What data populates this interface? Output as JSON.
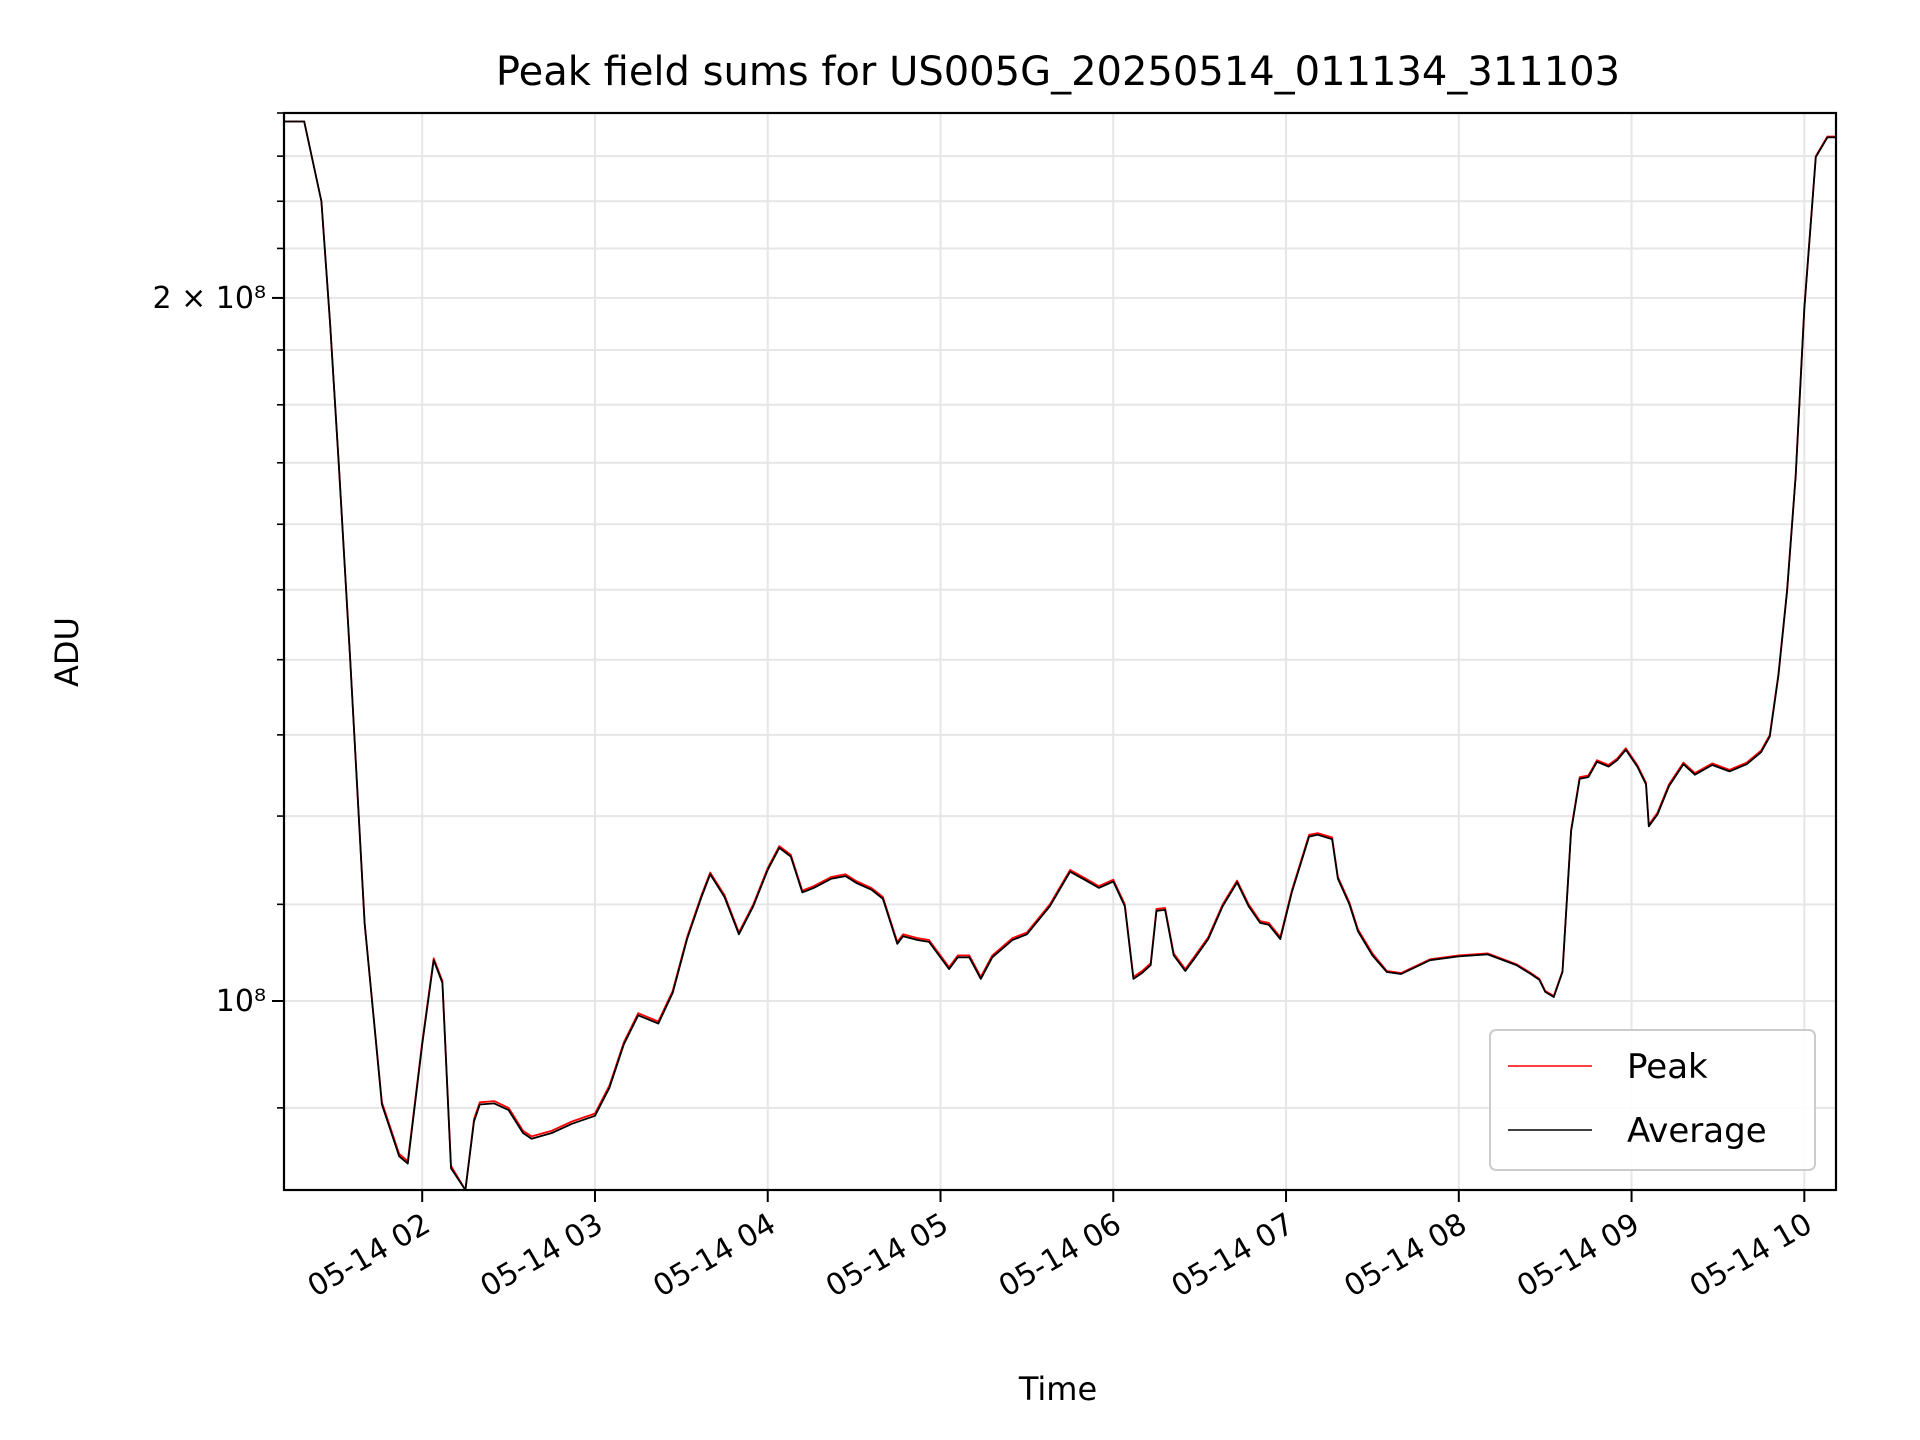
{
  "chart_data": {
    "type": "line",
    "title": "Peak field sums for US005G_20250514_011134_311103",
    "xlabel": "Time",
    "ylabel": "ADU",
    "y_scale": "log",
    "xlim": [
      "2025-05-14T01:12",
      "2025-05-14T10:11"
    ],
    "ylim": [
      83000000.0,
      240000000.0
    ],
    "x_ticks": [
      {
        "value": "2025-05-14T02:00",
        "label": "05-14 02"
      },
      {
        "value": "2025-05-14T03:00",
        "label": "05-14 03"
      },
      {
        "value": "2025-05-14T04:00",
        "label": "05-14 04"
      },
      {
        "value": "2025-05-14T05:00",
        "label": "05-14 05"
      },
      {
        "value": "2025-05-14T06:00",
        "label": "05-14 06"
      },
      {
        "value": "2025-05-14T07:00",
        "label": "05-14 07"
      },
      {
        "value": "2025-05-14T08:00",
        "label": "05-14 08"
      },
      {
        "value": "2025-05-14T09:00",
        "label": "05-14 09"
      },
      {
        "value": "2025-05-14T10:00",
        "label": "05-14 10"
      }
    ],
    "y_major_ticks": [
      {
        "value": 100000000,
        "label": "10⁸"
      },
      {
        "value": 200000000,
        "label": "2 × 10⁸"
      }
    ],
    "grid": true,
    "legend_position": "lower-right",
    "series": [
      {
        "name": "Peak",
        "color": "#ff0000",
        "x": [
          "2025-05-14T01:12",
          "2025-05-14T01:19",
          "2025-05-14T01:25",
          "2025-05-14T01:28",
          "2025-05-14T01:31",
          "2025-05-14T01:35",
          "2025-05-14T01:40",
          "2025-05-14T01:46",
          "2025-05-14T01:52",
          "2025-05-14T01:55",
          "2025-05-14T02:00",
          "2025-05-14T02:04",
          "2025-05-14T02:07",
          "2025-05-14T02:10",
          "2025-05-14T02:15",
          "2025-05-14T02:18",
          "2025-05-14T02:20",
          "2025-05-14T02:25",
          "2025-05-14T02:30",
          "2025-05-14T02:35",
          "2025-05-14T02:38",
          "2025-05-14T02:45",
          "2025-05-14T02:52",
          "2025-05-14T03:00",
          "2025-05-14T03:05",
          "2025-05-14T03:10",
          "2025-05-14T03:15",
          "2025-05-14T03:22",
          "2025-05-14T03:27",
          "2025-05-14T03:32",
          "2025-05-14T03:37",
          "2025-05-14T03:40",
          "2025-05-14T03:45",
          "2025-05-14T03:50",
          "2025-05-14T03:55",
          "2025-05-14T04:00",
          "2025-05-14T04:04",
          "2025-05-14T04:08",
          "2025-05-14T04:12",
          "2025-05-14T04:16",
          "2025-05-14T04:22",
          "2025-05-14T04:27",
          "2025-05-14T04:31",
          "2025-05-14T04:36",
          "2025-05-14T04:40",
          "2025-05-14T04:45",
          "2025-05-14T04:47",
          "2025-05-14T04:52",
          "2025-05-14T04:56",
          "2025-05-14T05:03",
          "2025-05-14T05:06",
          "2025-05-14T05:10",
          "2025-05-14T05:14",
          "2025-05-14T05:18",
          "2025-05-14T05:25",
          "2025-05-14T05:30",
          "2025-05-14T05:38",
          "2025-05-14T05:45",
          "2025-05-14T05:50",
          "2025-05-14T05:55",
          "2025-05-14T06:00",
          "2025-05-14T06:04",
          "2025-05-14T06:07",
          "2025-05-14T06:10",
          "2025-05-14T06:13",
          "2025-05-14T06:15",
          "2025-05-14T06:18",
          "2025-05-14T06:21",
          "2025-05-14T06:25",
          "2025-05-14T06:28",
          "2025-05-14T06:33",
          "2025-05-14T06:38",
          "2025-05-14T06:43",
          "2025-05-14T06:47",
          "2025-05-14T06:51",
          "2025-05-14T06:54",
          "2025-05-14T06:58",
          "2025-05-14T07:02",
          "2025-05-14T07:08",
          "2025-05-14T07:11",
          "2025-05-14T07:16",
          "2025-05-14T07:18",
          "2025-05-14T07:22",
          "2025-05-14T07:25",
          "2025-05-14T07:30",
          "2025-05-14T07:35",
          "2025-05-14T07:40",
          "2025-05-14T07:50",
          "2025-05-14T08:00",
          "2025-05-14T08:10",
          "2025-05-14T08:20",
          "2025-05-14T08:25",
          "2025-05-14T08:28",
          "2025-05-14T08:30",
          "2025-05-14T08:33",
          "2025-05-14T08:36",
          "2025-05-14T08:39",
          "2025-05-14T08:42",
          "2025-05-14T08:45",
          "2025-05-14T08:48",
          "2025-05-14T08:52",
          "2025-05-14T08:55",
          "2025-05-14T08:58",
          "2025-05-14T09:02",
          "2025-05-14T09:05",
          "2025-05-14T09:06",
          "2025-05-14T09:09",
          "2025-05-14T09:13",
          "2025-05-14T09:18",
          "2025-05-14T09:22",
          "2025-05-14T09:28",
          "2025-05-14T09:34",
          "2025-05-14T09:40",
          "2025-05-14T09:45",
          "2025-05-14T09:48",
          "2025-05-14T09:51",
          "2025-05-14T09:54",
          "2025-05-14T09:57",
          "2025-05-14T10:00",
          "2025-05-14T10:04",
          "2025-05-14T10:08",
          "2025-05-14T10:11"
        ],
        "y": [
          238000000,
          238000000,
          220000000,
          195000000,
          170000000,
          140000000,
          108000000,
          90500000,
          86000000,
          85400000,
          96000000,
          104300000,
          102000000,
          85000000,
          83000000,
          89000000,
          90500000,
          90600000,
          90000000,
          88000000,
          87500000,
          88000000,
          88800000,
          89500000,
          92000000,
          96000000,
          98800000,
          98000000,
          101000000,
          106500000,
          111000000,
          113500000,
          111000000,
          107000000,
          110000000,
          114000000,
          116500000,
          115500000,
          111500000,
          112000000,
          113000000,
          113300000,
          112500000,
          111800000,
          110800000,
          106000000,
          106800000,
          106400000,
          106200000,
          103400000,
          104600000,
          104600000,
          102400000,
          104600000,
          106400000,
          107000000,
          110000000,
          113800000,
          112900000,
          112000000,
          112700000,
          110000000,
          102400000,
          103000000,
          103800000,
          109500000,
          109600000,
          104800000,
          103200000,
          104400000,
          106500000,
          110000000,
          112600000,
          110000000,
          108200000,
          108000000,
          106500000,
          111500000,
          117800000,
          118000000,
          117500000,
          113000000,
          110200000,
          107300000,
          104800000,
          103000000,
          102800000,
          104200000,
          104600000,
          104800000,
          103700000,
          102800000,
          102200000,
          101000000,
          100500000,
          103000000,
          118400000,
          124700000,
          124900000,
          126800000,
          126200000,
          127000000,
          128300000,
          126200000,
          124000000,
          119000000,
          120400000,
          123800000,
          126500000,
          125200000,
          126400000,
          125600000,
          126500000,
          128000000,
          130000000,
          138000000,
          150000000,
          168000000,
          198000000,
          230000000,
          234500000,
          234500000
        ]
      },
      {
        "name": "Average",
        "color": "#000000",
        "x": [
          "2025-05-14T01:12",
          "2025-05-14T01:19",
          "2025-05-14T01:25",
          "2025-05-14T01:28",
          "2025-05-14T01:31",
          "2025-05-14T01:35",
          "2025-05-14T01:40",
          "2025-05-14T01:46",
          "2025-05-14T01:52",
          "2025-05-14T01:55",
          "2025-05-14T02:00",
          "2025-05-14T02:04",
          "2025-05-14T02:07",
          "2025-05-14T02:10",
          "2025-05-14T02:15",
          "2025-05-14T02:18",
          "2025-05-14T02:20",
          "2025-05-14T02:25",
          "2025-05-14T02:30",
          "2025-05-14T02:35",
          "2025-05-14T02:38",
          "2025-05-14T02:45",
          "2025-05-14T02:52",
          "2025-05-14T03:00",
          "2025-05-14T03:05",
          "2025-05-14T03:10",
          "2025-05-14T03:15",
          "2025-05-14T03:22",
          "2025-05-14T03:27",
          "2025-05-14T03:32",
          "2025-05-14T03:37",
          "2025-05-14T03:40",
          "2025-05-14T03:45",
          "2025-05-14T03:50",
          "2025-05-14T03:55",
          "2025-05-14T04:00",
          "2025-05-14T04:04",
          "2025-05-14T04:08",
          "2025-05-14T04:12",
          "2025-05-14T04:16",
          "2025-05-14T04:22",
          "2025-05-14T04:27",
          "2025-05-14T04:31",
          "2025-05-14T04:36",
          "2025-05-14T04:40",
          "2025-05-14T04:45",
          "2025-05-14T04:47",
          "2025-05-14T04:52",
          "2025-05-14T04:56",
          "2025-05-14T05:03",
          "2025-05-14T05:06",
          "2025-05-14T05:10",
          "2025-05-14T05:14",
          "2025-05-14T05:18",
          "2025-05-14T05:25",
          "2025-05-14T05:30",
          "2025-05-14T05:38",
          "2025-05-14T05:45",
          "2025-05-14T05:50",
          "2025-05-14T05:55",
          "2025-05-14T06:00",
          "2025-05-14T06:04",
          "2025-05-14T06:07",
          "2025-05-14T06:10",
          "2025-05-14T06:13",
          "2025-05-14T06:15",
          "2025-05-14T06:18",
          "2025-05-14T06:21",
          "2025-05-14T06:25",
          "2025-05-14T06:28",
          "2025-05-14T06:33",
          "2025-05-14T06:38",
          "2025-05-14T06:43",
          "2025-05-14T06:47",
          "2025-05-14T06:51",
          "2025-05-14T06:54",
          "2025-05-14T06:58",
          "2025-05-14T07:02",
          "2025-05-14T07:08",
          "2025-05-14T07:11",
          "2025-05-14T07:16",
          "2025-05-14T07:18",
          "2025-05-14T07:22",
          "2025-05-14T07:25",
          "2025-05-14T07:30",
          "2025-05-14T07:35",
          "2025-05-14T07:40",
          "2025-05-14T07:50",
          "2025-05-14T08:00",
          "2025-05-14T08:10",
          "2025-05-14T08:20",
          "2025-05-14T08:25",
          "2025-05-14T08:28",
          "2025-05-14T08:30",
          "2025-05-14T08:33",
          "2025-05-14T08:36",
          "2025-05-14T08:39",
          "2025-05-14T08:42",
          "2025-05-14T08:45",
          "2025-05-14T08:48",
          "2025-05-14T08:52",
          "2025-05-14T08:55",
          "2025-05-14T08:58",
          "2025-05-14T09:02",
          "2025-05-14T09:05",
          "2025-05-14T09:06",
          "2025-05-14T09:09",
          "2025-05-14T09:13",
          "2025-05-14T09:18",
          "2025-05-14T09:22",
          "2025-05-14T09:28",
          "2025-05-14T09:34",
          "2025-05-14T09:40",
          "2025-05-14T09:45",
          "2025-05-14T09:48",
          "2025-05-14T09:51",
          "2025-05-14T09:54",
          "2025-05-14T09:57",
          "2025-05-14T10:00",
          "2025-05-14T10:04",
          "2025-05-14T10:08",
          "2025-05-14T10:11"
        ],
        "y": [
          238000000,
          238000000,
          220000000,
          195000000,
          170000000,
          140000000,
          108000000,
          90300000,
          85800000,
          85200000,
          95800000,
          104100000,
          101800000,
          84800000,
          82800000,
          88800000,
          90300000,
          90400000,
          89800000,
          87800000,
          87300000,
          87800000,
          88600000,
          89300000,
          91800000,
          95800000,
          98600000,
          97800000,
          100800000,
          106300000,
          110800000,
          113300000,
          110800000,
          106800000,
          109800000,
          113800000,
          116300000,
          115300000,
          111300000,
          111800000,
          112800000,
          113100000,
          112300000,
          111600000,
          110600000,
          105800000,
          106600000,
          106200000,
          106000000,
          103200000,
          104400000,
          104400000,
          102200000,
          104400000,
          106200000,
          106800000,
          109800000,
          113600000,
          112700000,
          111800000,
          112500000,
          109800000,
          102200000,
          102800000,
          103600000,
          109300000,
          109400000,
          104600000,
          103000000,
          104200000,
          106300000,
          109800000,
          112400000,
          109800000,
          108000000,
          107800000,
          106300000,
          111300000,
          117600000,
          117800000,
          117300000,
          112800000,
          110000000,
          107100000,
          104600000,
          102900000,
          102700000,
          104100000,
          104500000,
          104700000,
          103600000,
          102700000,
          102100000,
          100900000,
          100400000,
          102900000,
          118200000,
          124500000,
          124700000,
          126600000,
          126000000,
          126800000,
          128100000,
          126000000,
          123800000,
          118800000,
          120200000,
          123600000,
          126300000,
          125000000,
          126200000,
          125400000,
          126300000,
          127800000,
          129800000,
          137800000,
          149800000,
          167800000,
          197800000,
          229800000,
          234300000,
          234300000
        ]
      }
    ]
  }
}
